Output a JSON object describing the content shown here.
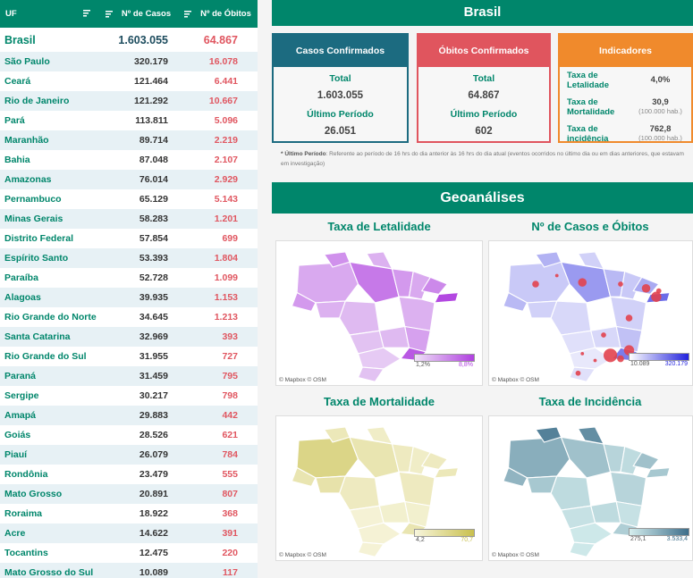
{
  "table": {
    "headers": {
      "uf": "UF",
      "casos": "Nº de Casos",
      "obitos": "Nº de Óbitos"
    },
    "rows": [
      {
        "uf": "Brasil",
        "casos": "1.603.055",
        "obitos": "64.867"
      },
      {
        "uf": "São Paulo",
        "casos": "320.179",
        "obitos": "16.078"
      },
      {
        "uf": "Ceará",
        "casos": "121.464",
        "obitos": "6.441"
      },
      {
        "uf": "Rio de Janeiro",
        "casos": "121.292",
        "obitos": "10.667"
      },
      {
        "uf": "Pará",
        "casos": "113.811",
        "obitos": "5.096"
      },
      {
        "uf": "Maranhão",
        "casos": "89.714",
        "obitos": "2.219"
      },
      {
        "uf": "Bahia",
        "casos": "87.048",
        "obitos": "2.107"
      },
      {
        "uf": "Amazonas",
        "casos": "76.014",
        "obitos": "2.929"
      },
      {
        "uf": "Pernambuco",
        "casos": "65.129",
        "obitos": "5.143"
      },
      {
        "uf": "Minas Gerais",
        "casos": "58.283",
        "obitos": "1.201"
      },
      {
        "uf": "Distrito Federal",
        "casos": "57.854",
        "obitos": "699"
      },
      {
        "uf": "Espírito Santo",
        "casos": "53.393",
        "obitos": "1.804"
      },
      {
        "uf": "Paraíba",
        "casos": "52.728",
        "obitos": "1.099"
      },
      {
        "uf": "Alagoas",
        "casos": "39.935",
        "obitos": "1.153"
      },
      {
        "uf": "Rio Grande do Norte",
        "casos": "34.645",
        "obitos": "1.213"
      },
      {
        "uf": "Santa Catarina",
        "casos": "32.969",
        "obitos": "393"
      },
      {
        "uf": "Rio Grande do Sul",
        "casos": "31.955",
        "obitos": "727"
      },
      {
        "uf": "Paraná",
        "casos": "31.459",
        "obitos": "795"
      },
      {
        "uf": "Sergipe",
        "casos": "30.217",
        "obitos": "798"
      },
      {
        "uf": "Amapá",
        "casos": "29.883",
        "obitos": "442"
      },
      {
        "uf": "Goiás",
        "casos": "28.526",
        "obitos": "621"
      },
      {
        "uf": "Piauí",
        "casos": "26.079",
        "obitos": "784"
      },
      {
        "uf": "Rondônia",
        "casos": "23.479",
        "obitos": "555"
      },
      {
        "uf": "Mato Grosso",
        "casos": "20.891",
        "obitos": "807"
      },
      {
        "uf": "Roraima",
        "casos": "18.922",
        "obitos": "368"
      },
      {
        "uf": "Acre",
        "casos": "14.622",
        "obitos": "391"
      },
      {
        "uf": "Tocantins",
        "casos": "12.475",
        "obitos": "220"
      },
      {
        "uf": "Mato Grosso do Sul",
        "casos": "10.089",
        "obitos": "117"
      }
    ]
  },
  "summary": {
    "title": "Brasil",
    "casos": {
      "header": "Casos Confirmados",
      "total_label": "Total",
      "total": "1.603.055",
      "period_label": "Último Período",
      "period": "26.051"
    },
    "obitos": {
      "header": "Óbitos Confirmados",
      "total_label": "Total",
      "total": "64.867",
      "period_label": "Último Período",
      "period": "602"
    },
    "indicadores": {
      "header": "Indicadores",
      "letalidade_label": "Taxa de Letalidade",
      "letalidade": "4,0%",
      "mortalidade_label": "Taxa de Mortalidade",
      "mortalidade": "30,9",
      "mortalidade_unit": "(100.000 hab.)",
      "incidencia_label": "Taxa de incidência",
      "incidencia": "762,8",
      "incidencia_unit": "(100.000 hab.)"
    },
    "footnote_bold": "* Último Período",
    "footnote": ": Referente ao período de 16 hrs do dia anterior às 16 hrs do dia atual (eventos ocorridos no último dia ou em dias anteriores, que estavam em investigação)"
  },
  "geo": {
    "title": "Geoanálises",
    "attribution": "© Mapbox © OSM",
    "maps": [
      {
        "title": "Taxa de Letalidade",
        "min": "1,2%",
        "max": "8,8%",
        "color_from": "#efe2f7",
        "color_to": "#b040e0"
      },
      {
        "title": "Nº de Casos e Óbitos",
        "min": "10.089",
        "max": "320.179",
        "color_from": "#ffffff",
        "color_to": "#2222dd"
      },
      {
        "title": "Taxa de Mortalidade",
        "min": "4,2",
        "max": "70,7",
        "color_from": "#f7f5dc",
        "color_to": "#c9c04e"
      },
      {
        "title": "Taxa de Incidência",
        "min": "275,1",
        "max": "3.533,4",
        "color_from": "#d5eeee",
        "color_to": "#3d6e8a"
      }
    ]
  }
}
